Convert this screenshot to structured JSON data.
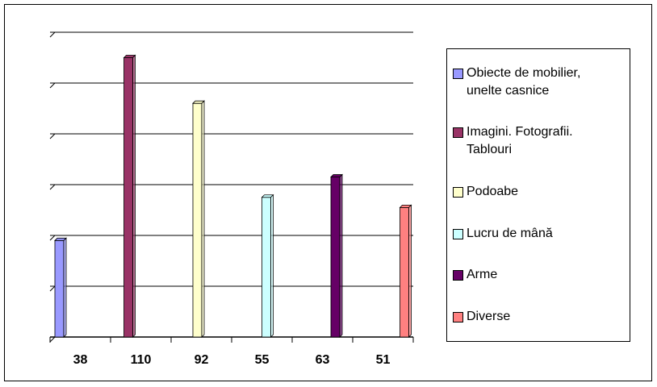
{
  "chart_data": {
    "type": "bar",
    "categories": [
      "38",
      "110",
      "92",
      "55",
      "63",
      "51"
    ],
    "series": [
      {
        "name": "Obiecte de mobilier, unelte casnice",
        "color": "#9999ff",
        "values": [
          38,
          null,
          null,
          null,
          null,
          null
        ]
      },
      {
        "name": "Imagini. Fotografii. Tablouri",
        "color": "#993366",
        "values": [
          null,
          110,
          null,
          null,
          null,
          null
        ]
      },
      {
        "name": "Podoabe",
        "color": "#ffffcc",
        "values": [
          null,
          null,
          92,
          null,
          null,
          null
        ]
      },
      {
        "name": "Lucru de mână",
        "color": "#ccffff",
        "values": [
          null,
          null,
          null,
          55,
          null,
          null
        ]
      },
      {
        "name": "Arme",
        "color": "#660066",
        "values": [
          null,
          null,
          null,
          null,
          63,
          null
        ]
      },
      {
        "name": "Diverse",
        "color": "#ff8080",
        "values": [
          null,
          null,
          null,
          null,
          null,
          51
        ]
      }
    ],
    "ylim": [
      0,
      120
    ],
    "yticks": [
      0,
      20,
      40,
      60,
      80,
      100,
      120
    ],
    "grid": true,
    "legend": "right"
  }
}
